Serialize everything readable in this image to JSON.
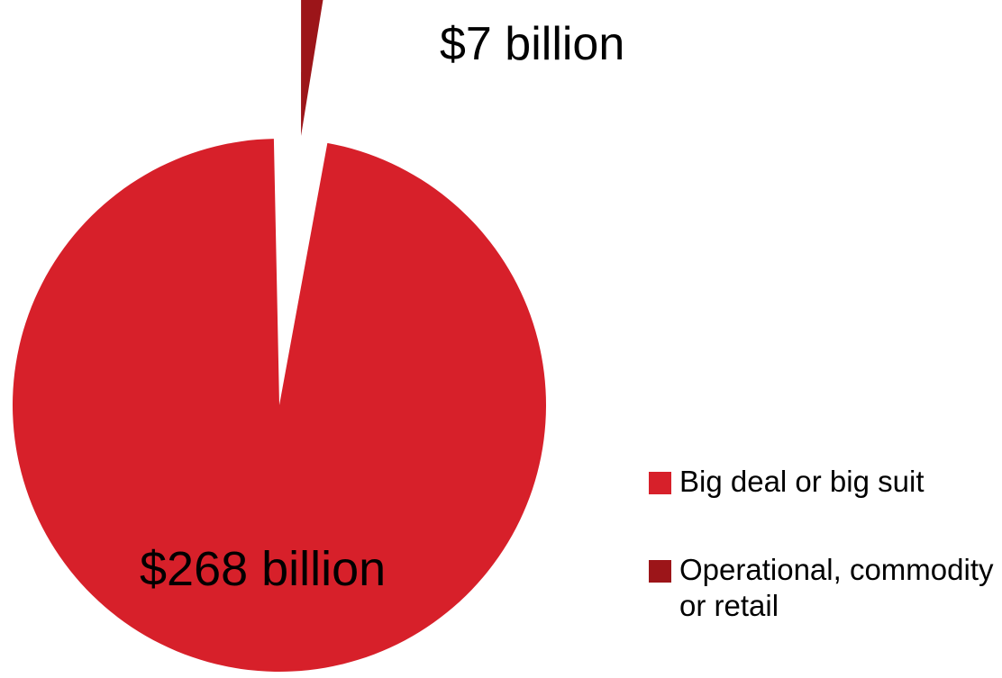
{
  "chart_data": {
    "type": "pie",
    "title": "",
    "unit": "billion USD",
    "slices": [
      {
        "label": "Big deal or big suit",
        "value": 268,
        "data_label": "$268 billion",
        "color": "#d7202a",
        "exploded": false
      },
      {
        "label": "Operational, commodity or retail",
        "value": 7,
        "data_label": "$7 billion",
        "color": "#9c1519",
        "exploded": true
      }
    ],
    "legend": {
      "position": "right",
      "entries": [
        "Big deal or big suit",
        "Operational, commodity or retail"
      ]
    }
  }
}
